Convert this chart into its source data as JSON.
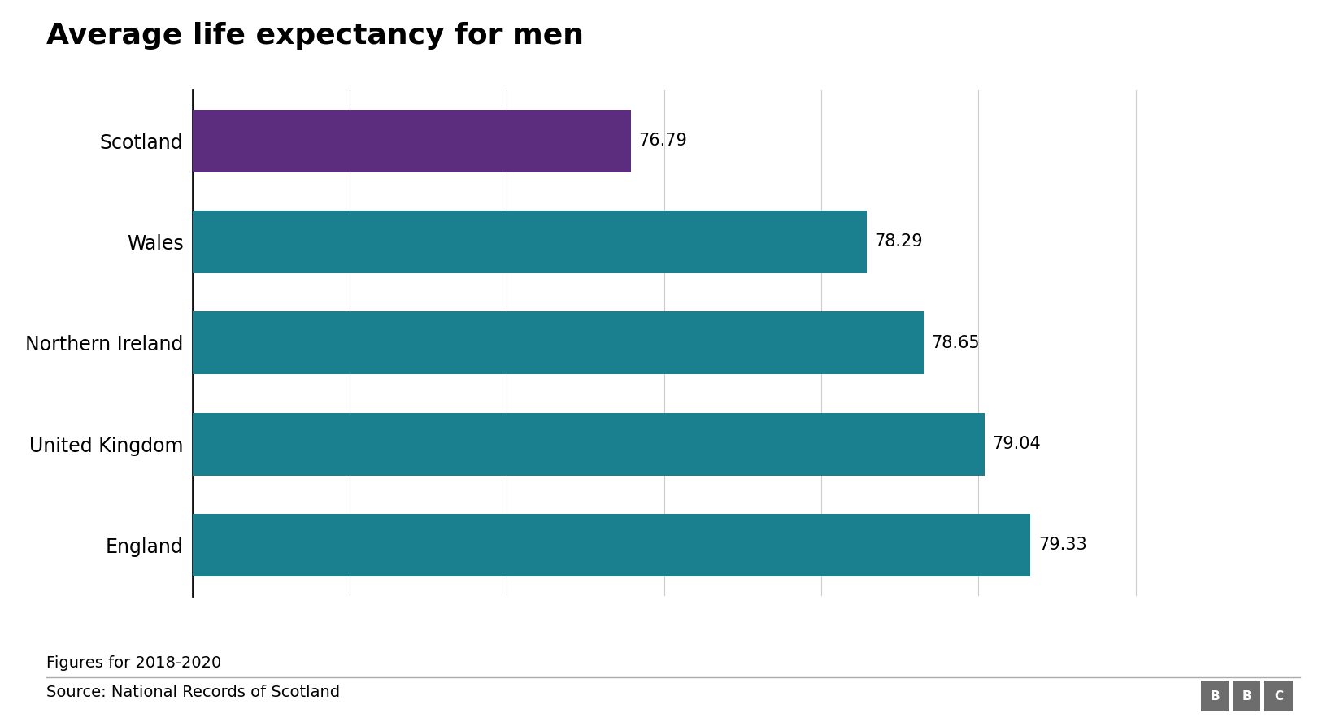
{
  "title": "Average life expectancy for men",
  "categories": [
    "England",
    "United Kingdom",
    "Northern Ireland",
    "Wales",
    "Scotland"
  ],
  "values": [
    79.33,
    79.04,
    78.65,
    78.29,
    76.79
  ],
  "bar_colors": [
    "#1a7f8e",
    "#1a7f8e",
    "#1a7f8e",
    "#1a7f8e",
    "#5c2d7e"
  ],
  "value_labels": [
    "79.33",
    "79.04",
    "78.65",
    "78.29",
    "76.79"
  ],
  "xlim_min": 74,
  "xlim_max": 80.5,
  "footnote": "Figures for 2018-2020",
  "source": "Source: National Records of Scotland",
  "title_fontsize": 26,
  "label_fontsize": 17,
  "annotation_fontsize": 15,
  "footnote_fontsize": 14,
  "background_color": "#ffffff",
  "grid_color": "#cccccc",
  "bar_height": 0.62,
  "bbc_box_color": "#6d6d6d"
}
